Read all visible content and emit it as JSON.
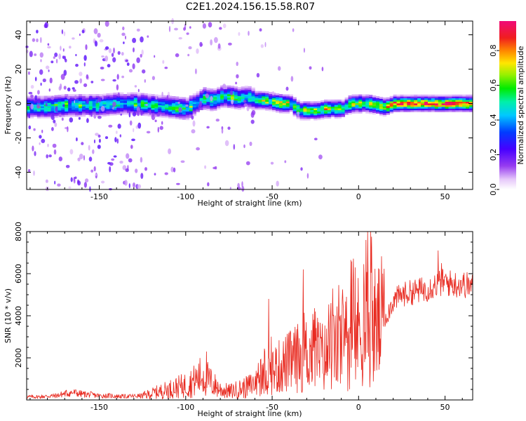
{
  "figure": {
    "title": "C2E1.2024.156.15.58.R07"
  },
  "chart_data": [
    {
      "type": "heatmap",
      "title": "",
      "xlabel": "Height of straight line (km)",
      "ylabel": "Frequency (Hz)",
      "xlim": [
        -192,
        66
      ],
      "ylim": [
        -50,
        48
      ],
      "xticks": [
        -150,
        -100,
        -50,
        0,
        50
      ],
      "xtick_labels": [
        "-150",
        "-100",
        "-50",
        "0",
        "50"
      ],
      "yticks": [
        -40,
        -20,
        0,
        20,
        40
      ],
      "ytick_labels": [
        "-40",
        "-20",
        "0",
        "20",
        "40"
      ],
      "colorbar": {
        "label": "Normalized spectral amplitude",
        "range": [
          0,
          0.97
        ],
        "ticks": [
          0,
          0.2,
          0.4,
          0.6,
          0.8
        ],
        "tick_labels": [
          "0.0",
          "0.2",
          "0.4",
          "0.6",
          "0.8"
        ],
        "colormap": "rainbow (white-purple-blue-cyan-green-yellow-orange-red-magenta)"
      },
      "ridge_centerline": {
        "x": [
          -192,
          -180,
          -170,
          -160,
          -150,
          -140,
          -130,
          -120,
          -110,
          -100,
          -95,
          -90,
          -85,
          -80,
          -75,
          -70,
          -65,
          -60,
          -55,
          -50,
          -45,
          -40,
          -35,
          -30,
          -25,
          -20,
          -15,
          -10,
          -5,
          0,
          5,
          10,
          15,
          20,
          30,
          40,
          50,
          60,
          66
        ],
        "y": [
          -2,
          -2,
          -1,
          -1,
          -1,
          0,
          0,
          -1,
          -2,
          -3,
          0,
          3,
          2,
          4,
          4,
          3,
          4,
          2,
          2,
          1,
          0,
          0,
          -4,
          -4,
          -4,
          -3,
          -3,
          -3,
          0,
          0,
          0,
          -1,
          -2,
          0,
          0,
          0,
          0,
          0,
          0
        ]
      },
      "grid": false
    },
    {
      "type": "line",
      "title": "",
      "xlabel": "Height of straight line (km)",
      "ylabel": "SNR (10 * v/v)",
      "xlim": [
        -192,
        66
      ],
      "ylim": [
        0,
        8000
      ],
      "xticks": [
        -150,
        -100,
        -50,
        0,
        50
      ],
      "xtick_labels": [
        "-150",
        "-100",
        "-50",
        "0",
        "50"
      ],
      "yticks": [
        2000,
        4000,
        6000,
        8000
      ],
      "ytick_labels": [
        "2000",
        "4000",
        "6000",
        "8000"
      ],
      "color": "#e8281e",
      "series": [
        {
          "x": [
            -192,
            -185,
            -180,
            -175,
            -170,
            -165,
            -160,
            -155,
            -150,
            -145,
            -140,
            -135,
            -130,
            -125,
            -120,
            -115,
            -110,
            -105,
            -100,
            -95,
            -90,
            -85,
            -80,
            -75,
            -70,
            -65,
            -60,
            -55,
            -50,
            -45,
            -40,
            -35,
            -30,
            -25,
            -20,
            -15,
            -10,
            -5,
            0,
            5,
            10,
            15,
            20,
            25,
            30,
            35,
            40,
            45,
            50,
            55,
            60,
            66
          ],
          "y": [
            150,
            150,
            180,
            200,
            300,
            350,
            280,
            250,
            200,
            200,
            180,
            170,
            180,
            200,
            300,
            400,
            500,
            600,
            700,
            900,
            1200,
            800,
            500,
            400,
            500,
            600,
            800,
            1000,
            1400,
            1600,
            1800,
            2000,
            2200,
            2300,
            2000,
            2300,
            2600,
            2800,
            3300,
            3600,
            3500,
            3800,
            4700,
            5000,
            5100,
            5200,
            5300,
            5500,
            5600,
            5500,
            5500,
            5400
          ]
        }
      ],
      "spikes": [
        {
          "x": -88,
          "y": 2300
        },
        {
          "x": -52,
          "y": 4800
        },
        {
          "x": -32,
          "y": 6200
        },
        {
          "x": -25,
          "y": 4200
        },
        {
          "x": -16,
          "y": 4600
        },
        {
          "x": -7,
          "y": 4900
        },
        {
          "x": 7,
          "y": 8000
        },
        {
          "x": 14,
          "y": 6000
        },
        {
          "x": 46,
          "y": 7100
        },
        {
          "x": 48,
          "y": 6500
        }
      ],
      "grid": false
    }
  ]
}
